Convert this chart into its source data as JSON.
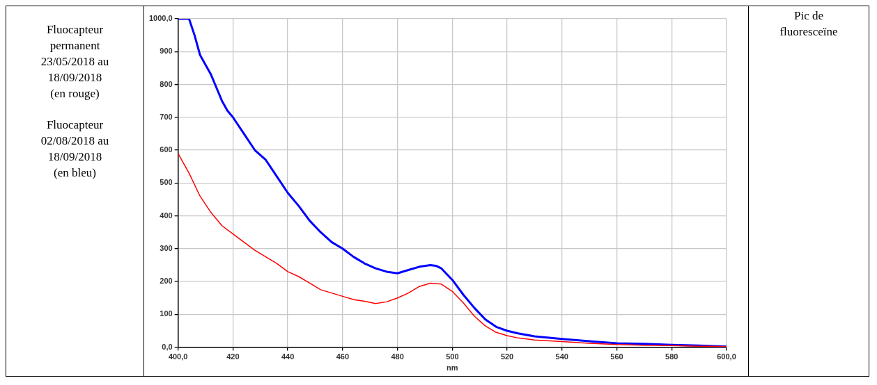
{
  "chart_data": {
    "type": "line",
    "xlabel": "nm",
    "marker": "none",
    "grid": true,
    "legend": false,
    "annotations": [
      "Fluocapteur permanent 23/05/2018 au 18/09/2018 (en rouge)",
      "Fluocapteur 02/08/2018 au 18/09/2018 (en bleu)",
      "Pic de fluoresceïne"
    ],
    "xlim": [
      400,
      600
    ],
    "ylim": [
      0,
      1000
    ],
    "xticks": [
      {
        "value": 400,
        "label": "400,0"
      },
      420,
      440,
      460,
      480,
      500,
      520,
      540,
      560,
      580,
      {
        "value": 600,
        "label": "600,0"
      }
    ],
    "yticks": [
      {
        "value": 0,
        "label": "0,0"
      },
      100,
      200,
      300,
      400,
      500,
      600,
      700,
      800,
      900,
      {
        "value": 1000,
        "label": "1000,0"
      }
    ],
    "series": [
      {
        "color": "#ff0000",
        "x": [
          400,
          404,
          408,
          412,
          416,
          420,
          424,
          428,
          432,
          436,
          440,
          444,
          448,
          452,
          456,
          460,
          464,
          468,
          472,
          476,
          480,
          484,
          488,
          492,
          496,
          500,
          504,
          508,
          512,
          516,
          520,
          524,
          530,
          540,
          550,
          560,
          570,
          580,
          590,
          600
        ],
        "values": [
          590,
          530,
          460,
          410,
          370,
          345,
          320,
          295,
          275,
          255,
          230,
          215,
          195,
          175,
          165,
          155,
          145,
          140,
          133,
          138,
          150,
          165,
          185,
          195,
          192,
          170,
          135,
          95,
          65,
          45,
          35,
          28,
          22,
          17,
          12,
          8,
          6,
          5,
          3,
          2
        ]
      },
      {
        "color": "#0000ff",
        "x": [
          400,
          404,
          406,
          408,
          410,
          412,
          414,
          416,
          418,
          420,
          424,
          428,
          432,
          436,
          440,
          444,
          448,
          452,
          456,
          460,
          464,
          468,
          472,
          476,
          480,
          484,
          488,
          492,
          494,
          496,
          500,
          504,
          508,
          512,
          516,
          520,
          524,
          530,
          540,
          550,
          560,
          570,
          580,
          590,
          600
        ],
        "values": [
          1000,
          1000,
          950,
          890,
          860,
          830,
          790,
          750,
          720,
          700,
          650,
          600,
          570,
          520,
          470,
          430,
          385,
          350,
          320,
          300,
          275,
          255,
          240,
          230,
          225,
          235,
          245,
          250,
          248,
          240,
          205,
          160,
          120,
          85,
          62,
          50,
          42,
          33,
          25,
          18,
          12,
          10,
          7,
          5,
          2
        ]
      }
    ]
  }
}
